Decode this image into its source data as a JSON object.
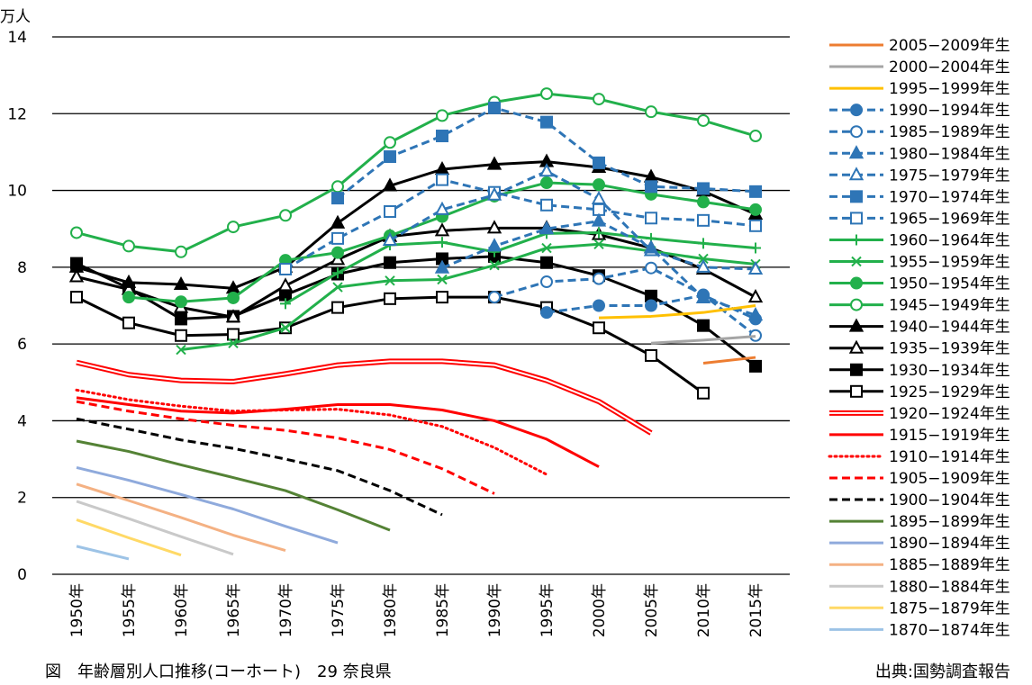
{
  "caption": "図　年齢層別人口推移(コーホート)　29 奈良県",
  "source": "出典:国勢調査報告",
  "chart_data": {
    "type": "line",
    "unit_label": "万人",
    "title": "",
    "xlabel": "",
    "ylabel": "",
    "ylim": [
      0,
      14
    ],
    "yticks": [
      "0",
      "2",
      "4",
      "6",
      "8",
      "10",
      "12",
      "14"
    ],
    "grid": true,
    "legend_position": "right",
    "categories": [
      "1950年",
      "1955年",
      "1960年",
      "1965年",
      "1970年",
      "1975年",
      "1980年",
      "1985年",
      "1990年",
      "1995年",
      "2000年",
      "2005年",
      "2010年",
      "2015年"
    ],
    "series": [
      {
        "name": "2005−2009年生",
        "color": "#ed7d31",
        "style": "solid",
        "marker": "none",
        "values": [
          null,
          null,
          null,
          null,
          null,
          null,
          null,
          null,
          null,
          null,
          null,
          null,
          5.5,
          5.65
        ]
      },
      {
        "name": "2000−2004年生",
        "color": "#a5a5a5",
        "style": "solid",
        "marker": "none",
        "values": [
          null,
          null,
          null,
          null,
          null,
          null,
          null,
          null,
          null,
          null,
          null,
          6.02,
          6.1,
          6.2
        ]
      },
      {
        "name": "1995−1999年生",
        "color": "#ffc000",
        "style": "solid",
        "marker": "none",
        "values": [
          null,
          null,
          null,
          null,
          null,
          null,
          null,
          null,
          null,
          null,
          6.68,
          6.72,
          6.82,
          7.0
        ]
      },
      {
        "name": "1990−1994年生",
        "color": "#2e75b6",
        "style": "dash",
        "marker": "circle-filled",
        "values": [
          null,
          null,
          null,
          null,
          null,
          null,
          null,
          null,
          null,
          6.82,
          7.0,
          7.0,
          7.27,
          6.65
        ]
      },
      {
        "name": "1985−1989年生",
        "color": "#2e75b6",
        "style": "dash",
        "marker": "circle-open",
        "values": [
          null,
          null,
          null,
          null,
          null,
          null,
          null,
          null,
          7.22,
          7.62,
          7.7,
          7.98,
          7.28,
          6.22
        ]
      },
      {
        "name": "1980−1984年生",
        "color": "#2e75b6",
        "style": "dash",
        "marker": "triangle-filled",
        "values": [
          null,
          null,
          null,
          null,
          null,
          null,
          null,
          7.98,
          8.55,
          9.0,
          9.2,
          8.5,
          7.2,
          6.75
        ]
      },
      {
        "name": "1975−1979年生",
        "color": "#2e75b6",
        "style": "dash",
        "marker": "triangle-open",
        "values": [
          null,
          null,
          null,
          null,
          null,
          null,
          8.7,
          9.5,
          9.88,
          10.5,
          9.78,
          8.43,
          8.0,
          7.95
        ]
      },
      {
        "name": "1970−1974年生",
        "color": "#2e75b6",
        "style": "dash",
        "marker": "square-filled",
        "values": [
          null,
          null,
          null,
          null,
          null,
          9.8,
          10.88,
          11.42,
          12.15,
          11.78,
          10.72,
          10.1,
          10.05,
          9.97
        ]
      },
      {
        "name": "1965−1969年生",
        "color": "#2e75b6",
        "style": "dash",
        "marker": "square-open",
        "values": [
          null,
          null,
          null,
          null,
          7.95,
          8.75,
          9.45,
          10.28,
          9.95,
          9.62,
          9.5,
          9.28,
          9.22,
          9.08
        ]
      },
      {
        "name": "1960−1964年生",
        "color": "#22b04b",
        "style": "solid",
        "marker": "plus",
        "values": [
          null,
          null,
          null,
          null,
          7.05,
          7.85,
          8.58,
          8.65,
          8.4,
          8.88,
          8.9,
          8.75,
          8.62,
          8.5
        ]
      },
      {
        "name": "1955−1959年生",
        "color": "#22b04b",
        "style": "solid",
        "marker": "x",
        "values": [
          null,
          null,
          5.85,
          6.02,
          6.42,
          7.48,
          7.65,
          7.68,
          8.05,
          8.5,
          8.6,
          8.42,
          8.22,
          8.08
        ]
      },
      {
        "name": "1950−1954年生",
        "color": "#22b04b",
        "style": "solid",
        "marker": "circle-filled",
        "values": [
          null,
          7.22,
          7.1,
          7.2,
          8.18,
          8.38,
          8.82,
          9.32,
          9.85,
          10.2,
          10.15,
          9.9,
          9.7,
          9.5
        ]
      },
      {
        "name": "1945−1949年生",
        "color": "#22b04b",
        "style": "solid",
        "marker": "circle-open",
        "values": [
          8.9,
          8.55,
          8.4,
          9.05,
          9.35,
          10.1,
          11.25,
          11.95,
          12.3,
          12.52,
          12.38,
          12.05,
          11.82,
          11.42
        ]
      },
      {
        "name": "1940−1944年生",
        "color": "#000000",
        "style": "solid",
        "marker": "triangle-filled",
        "values": [
          8.0,
          7.6,
          7.55,
          7.45,
          8.0,
          9.15,
          10.12,
          10.55,
          10.68,
          10.75,
          10.6,
          10.35,
          9.98,
          9.38
        ]
      },
      {
        "name": "1935−1939年生",
        "color": "#000000",
        "style": "solid",
        "marker": "triangle-open",
        "values": [
          7.75,
          7.42,
          6.95,
          6.7,
          7.52,
          8.2,
          8.8,
          8.95,
          9.02,
          9.02,
          8.85,
          8.5,
          7.95,
          7.22
        ]
      },
      {
        "name": "1930−1934年生",
        "color": "#000000",
        "style": "solid",
        "marker": "square-filled",
        "values": [
          8.1,
          7.45,
          6.65,
          6.72,
          7.28,
          7.82,
          8.12,
          8.22,
          8.28,
          8.12,
          7.78,
          7.25,
          6.48,
          5.42
        ]
      },
      {
        "name": "1925−1929年生",
        "color": "#000000",
        "style": "solid",
        "marker": "square-open",
        "values": [
          7.22,
          6.55,
          6.22,
          6.25,
          6.42,
          6.95,
          7.18,
          7.22,
          7.22,
          6.95,
          6.42,
          5.7,
          4.72,
          null
        ]
      },
      {
        "name": "1920−1924年生",
        "color": "#ff0000",
        "style": "double",
        "marker": "none",
        "values": [
          5.52,
          5.2,
          5.05,
          5.02,
          5.22,
          5.45,
          5.55,
          5.55,
          5.45,
          5.05,
          4.5,
          3.68,
          null,
          null
        ]
      },
      {
        "name": "1915−1919年生",
        "color": "#ff0000",
        "style": "solid",
        "marker": "none",
        "values": [
          4.6,
          4.42,
          4.25,
          4.2,
          4.3,
          4.42,
          4.42,
          4.28,
          4.0,
          3.52,
          2.8,
          null,
          null,
          null
        ]
      },
      {
        "name": "1910−1914年生",
        "color": "#ff0000",
        "style": "dot",
        "marker": "none",
        "values": [
          4.8,
          4.55,
          4.38,
          4.25,
          4.28,
          4.3,
          4.15,
          3.85,
          3.3,
          2.6,
          null,
          null,
          null,
          null
        ]
      },
      {
        "name": "1905−1909年生",
        "color": "#ff0000",
        "style": "dash",
        "marker": "none",
        "values": [
          4.5,
          4.25,
          4.05,
          3.88,
          3.75,
          3.55,
          3.25,
          2.75,
          2.1,
          null,
          null,
          null,
          null,
          null
        ]
      },
      {
        "name": "1900−1904年生",
        "color": "#000000",
        "style": "dash",
        "marker": "none",
        "values": [
          4.05,
          3.78,
          3.5,
          3.28,
          3.0,
          2.7,
          2.18,
          1.55,
          null,
          null,
          null,
          null,
          null,
          null
        ]
      },
      {
        "name": "1895−1899年生",
        "color": "#548235",
        "style": "solid",
        "marker": "none",
        "values": [
          3.47,
          3.2,
          2.85,
          2.52,
          2.18,
          1.68,
          1.15,
          null,
          null,
          null,
          null,
          null,
          null,
          null
        ]
      },
      {
        "name": "1890−1894年生",
        "color": "#8faadc",
        "style": "solid",
        "marker": "none",
        "values": [
          2.78,
          2.45,
          2.08,
          1.7,
          1.25,
          0.82,
          null,
          null,
          null,
          null,
          null,
          null,
          null,
          null
        ]
      },
      {
        "name": "1885−1889年生",
        "color": "#f4b183",
        "style": "solid",
        "marker": "none",
        "values": [
          2.35,
          1.92,
          1.48,
          1.02,
          0.62,
          null,
          null,
          null,
          null,
          null,
          null,
          null,
          null,
          null
        ]
      },
      {
        "name": "1880−1884年生",
        "color": "#c9c9c9",
        "style": "solid",
        "marker": "none",
        "values": [
          1.9,
          1.45,
          0.98,
          0.52,
          null,
          null,
          null,
          null,
          null,
          null,
          null,
          null,
          null,
          null
        ]
      },
      {
        "name": "1875−1879年生",
        "color": "#ffd966",
        "style": "solid",
        "marker": "none",
        "values": [
          1.42,
          0.95,
          0.5,
          null,
          null,
          null,
          null,
          null,
          null,
          null,
          null,
          null,
          null,
          null
        ]
      },
      {
        "name": "1870−1874年生",
        "color": "#9dc3e6",
        "style": "solid",
        "marker": "none",
        "values": [
          0.73,
          0.4,
          null,
          null,
          null,
          null,
          null,
          null,
          null,
          null,
          null,
          null,
          null,
          null
        ]
      }
    ]
  }
}
